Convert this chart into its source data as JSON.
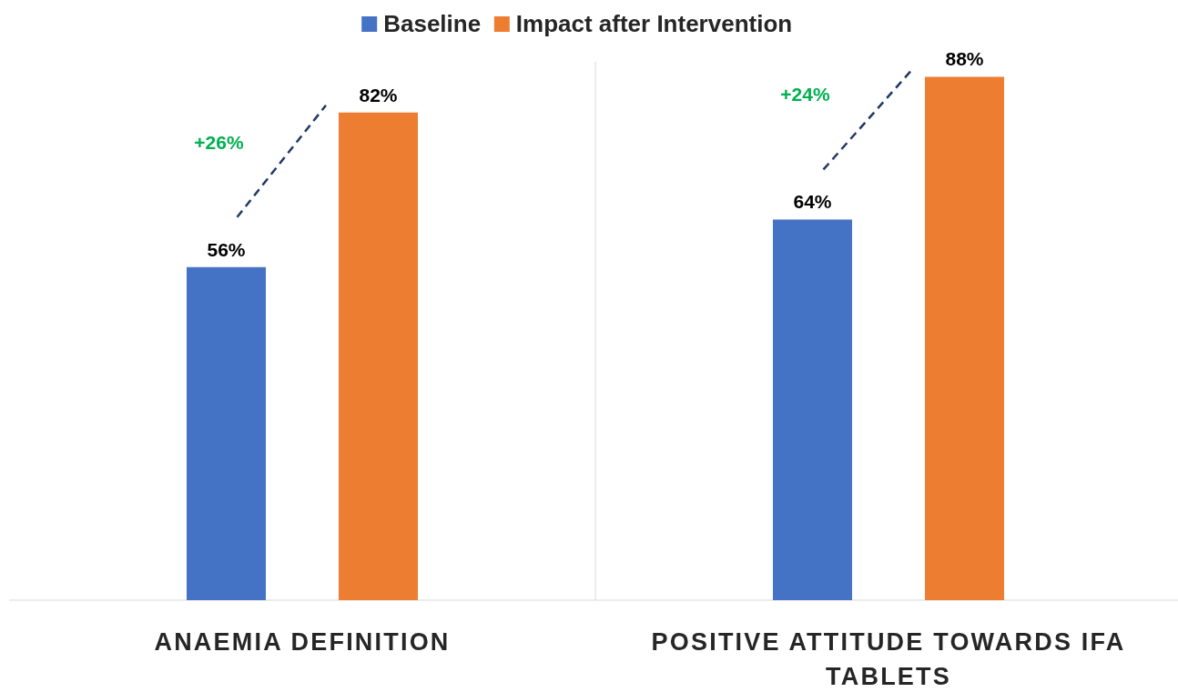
{
  "chart_data": {
    "type": "bar",
    "categories": [
      "ANAEMIA DEFINITION",
      "POSITIVE ATTITUDE TOWARDS IFA TABLETS"
    ],
    "series": [
      {
        "name": "Baseline",
        "color": "#4472c4",
        "values": [
          56,
          64
        ],
        "value_labels": [
          "56%",
          "64%"
        ]
      },
      {
        "name": "Impact after Intervention",
        "color": "#ed7d31",
        "values": [
          82,
          88
        ],
        "value_labels": [
          "82%",
          "88%"
        ]
      }
    ],
    "annotations": [
      "+26%",
      "+24%"
    ],
    "legend": "top",
    "grid": false
  }
}
